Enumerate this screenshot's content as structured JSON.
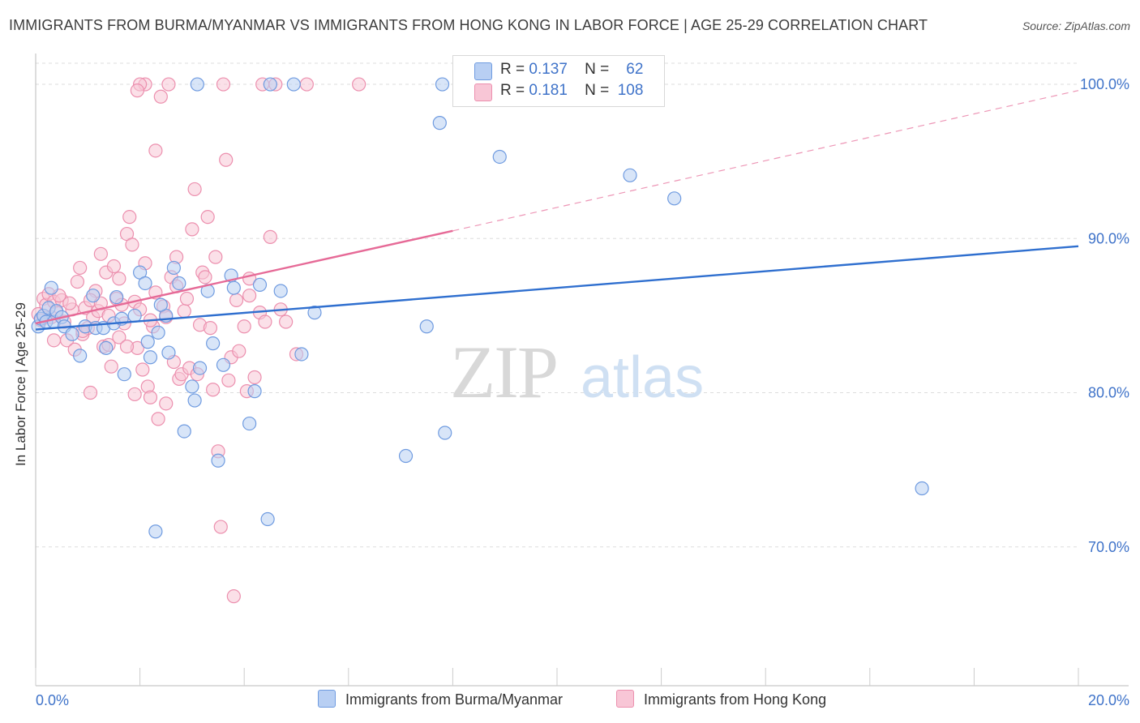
{
  "title": "IMMIGRANTS FROM BURMA/MYANMAR VS IMMIGRANTS FROM HONG KONG IN LABOR FORCE | AGE 25-29 CORRELATION CHART",
  "source": "Source: ZipAtlas.com",
  "watermark": {
    "zip": "ZIP",
    "atlas": "atlas"
  },
  "colors": {
    "blue_fill": "#b8cff3",
    "blue_stroke": "#6f9be0",
    "blue_line": "#2f6fcf",
    "pink_fill": "#f8c6d6",
    "pink_stroke": "#ec8fae",
    "pink_line": "#e66a97",
    "axis_label": "#3f73c9",
    "grid": "#dddddd"
  },
  "legend": {
    "r_label": "R =",
    "n_label": "N =",
    "burma": {
      "r": "0.137",
      "n": "62"
    },
    "hongkong": {
      "r": "0.181",
      "n": "108"
    }
  },
  "chart_data": {
    "type": "scatter",
    "xlabel": "",
    "ylabel": "In Labor Force | Age 25-29",
    "xlim": [
      0,
      20
    ],
    "ylim": [
      61,
      102
    ],
    "x_tick_labels": {
      "left": "0.0%",
      "right": "20.0%"
    },
    "y_ticks": [
      70,
      80,
      90,
      100
    ],
    "y_tick_labels": [
      "70.0%",
      "80.0%",
      "90.0%",
      "100.0%"
    ],
    "grid": "horizontal dashed",
    "series": [
      {
        "name": "Immigrants from Burma/Myanmar",
        "color": "#b8cff3",
        "trend": {
          "x": [
            0,
            20
          ],
          "y": [
            84.1,
            89.5
          ],
          "style": "solid"
        },
        "points": [
          [
            0.05,
            84.3
          ],
          [
            0.1,
            84.8
          ],
          [
            0.15,
            85.0
          ],
          [
            0.2,
            84.6
          ],
          [
            0.25,
            85.5
          ],
          [
            0.3,
            86.8
          ],
          [
            0.35,
            84.6
          ],
          [
            0.4,
            85.3
          ],
          [
            0.5,
            84.9
          ],
          [
            0.55,
            84.3
          ],
          [
            0.7,
            83.8
          ],
          [
            0.85,
            82.4
          ],
          [
            0.95,
            84.3
          ],
          [
            1.1,
            86.3
          ],
          [
            1.15,
            84.2
          ],
          [
            1.3,
            84.2
          ],
          [
            1.35,
            82.9
          ],
          [
            1.5,
            84.5
          ],
          [
            1.55,
            86.2
          ],
          [
            1.65,
            84.8
          ],
          [
            1.7,
            81.2
          ],
          [
            1.9,
            85.0
          ],
          [
            2.0,
            87.8
          ],
          [
            2.1,
            87.1
          ],
          [
            2.15,
            83.3
          ],
          [
            2.2,
            82.3
          ],
          [
            2.3,
            71.0
          ],
          [
            2.35,
            83.9
          ],
          [
            2.5,
            85.0
          ],
          [
            2.55,
            82.6
          ],
          [
            2.65,
            88.1
          ],
          [
            2.75,
            87.1
          ],
          [
            2.85,
            77.5
          ],
          [
            3.0,
            80.4
          ],
          [
            3.05,
            79.5
          ],
          [
            3.15,
            81.6
          ],
          [
            3.3,
            86.6
          ],
          [
            3.4,
            83.2
          ],
          [
            3.5,
            75.6
          ],
          [
            3.6,
            81.8
          ],
          [
            3.75,
            87.6
          ],
          [
            3.8,
            86.8
          ],
          [
            3.1,
            100.0
          ],
          [
            4.2,
            80.1
          ],
          [
            4.3,
            87.0
          ],
          [
            4.1,
            78.0
          ],
          [
            4.45,
            71.8
          ],
          [
            4.5,
            100.0
          ],
          [
            4.7,
            86.6
          ],
          [
            4.95,
            100.0
          ],
          [
            5.1,
            82.5
          ],
          [
            5.35,
            85.2
          ],
          [
            7.1,
            75.9
          ],
          [
            7.5,
            84.3
          ],
          [
            7.8,
            100.0
          ],
          [
            7.75,
            97.5
          ],
          [
            7.85,
            77.4
          ],
          [
            8.9,
            95.3
          ],
          [
            11.4,
            94.1
          ],
          [
            12.25,
            92.6
          ],
          [
            17.0,
            73.8
          ],
          [
            2.4,
            85.7
          ]
        ]
      },
      {
        "name": "Immigrants from Hong Kong",
        "color": "#f8c6d6",
        "trend": {
          "x": [
            0,
            8
          ],
          "y": [
            84.5,
            90.5
          ],
          "style": "solid",
          "extension": {
            "x": [
              8,
              20
            ],
            "y": [
              90.5,
              99.6
            ],
            "style": "dashed"
          }
        },
        "points": [
          [
            0.05,
            85.1
          ],
          [
            0.1,
            84.7
          ],
          [
            0.15,
            86.1
          ],
          [
            0.2,
            85.7
          ],
          [
            0.25,
            86.4
          ],
          [
            0.3,
            84.9
          ],
          [
            0.35,
            85.9
          ],
          [
            0.4,
            85.2
          ],
          [
            0.5,
            86.0
          ],
          [
            0.55,
            84.6
          ],
          [
            0.6,
            83.4
          ],
          [
            0.7,
            85.4
          ],
          [
            0.75,
            82.8
          ],
          [
            0.8,
            87.2
          ],
          [
            0.85,
            88.1
          ],
          [
            0.9,
            83.8
          ],
          [
            0.95,
            85.5
          ],
          [
            1.0,
            84.2
          ],
          [
            1.05,
            80.0
          ],
          [
            1.1,
            84.9
          ],
          [
            1.15,
            86.6
          ],
          [
            1.2,
            85.3
          ],
          [
            1.25,
            89.0
          ],
          [
            1.3,
            83.0
          ],
          [
            1.35,
            87.8
          ],
          [
            1.4,
            85.0
          ],
          [
            1.45,
            81.7
          ],
          [
            1.5,
            88.2
          ],
          [
            1.55,
            86.1
          ],
          [
            1.6,
            87.4
          ],
          [
            1.65,
            85.7
          ],
          [
            1.7,
            84.5
          ],
          [
            1.75,
            90.3
          ],
          [
            1.8,
            91.4
          ],
          [
            1.85,
            89.6
          ],
          [
            1.9,
            85.9
          ],
          [
            1.95,
            82.9
          ],
          [
            2.0,
            85.4
          ],
          [
            2.05,
            81.5
          ],
          [
            2.1,
            88.4
          ],
          [
            2.15,
            80.4
          ],
          [
            2.2,
            79.7
          ],
          [
            2.25,
            84.3
          ],
          [
            2.3,
            86.5
          ],
          [
            2.35,
            78.3
          ],
          [
            2.4,
            99.2
          ],
          [
            2.45,
            85.6
          ],
          [
            2.5,
            79.3
          ],
          [
            2.55,
            100.0
          ],
          [
            2.6,
            87.5
          ],
          [
            2.65,
            82.0
          ],
          [
            2.7,
            88.8
          ],
          [
            2.75,
            80.9
          ],
          [
            2.8,
            81.2
          ],
          [
            2.85,
            85.3
          ],
          [
            2.9,
            86.1
          ],
          [
            2.95,
            81.6
          ],
          [
            3.0,
            90.6
          ],
          [
            3.05,
            93.2
          ],
          [
            3.1,
            81.2
          ],
          [
            3.15,
            84.4
          ],
          [
            3.2,
            87.8
          ],
          [
            3.3,
            91.4
          ],
          [
            3.35,
            84.2
          ],
          [
            3.4,
            80.2
          ],
          [
            3.45,
            88.8
          ],
          [
            3.5,
            76.2
          ],
          [
            3.55,
            71.3
          ],
          [
            3.6,
            100.0
          ],
          [
            3.65,
            95.1
          ],
          [
            3.7,
            80.8
          ],
          [
            3.75,
            82.3
          ],
          [
            3.8,
            66.8
          ],
          [
            3.85,
            86.0
          ],
          [
            3.9,
            82.7
          ],
          [
            4.0,
            84.3
          ],
          [
            4.05,
            80.1
          ],
          [
            4.1,
            86.3
          ],
          [
            4.2,
            81.0
          ],
          [
            4.3,
            85.2
          ],
          [
            4.4,
            84.6
          ],
          [
            4.5,
            90.1
          ],
          [
            4.6,
            100.0
          ],
          [
            4.7,
            85.4
          ],
          [
            4.8,
            84.6
          ],
          [
            5.0,
            82.5
          ],
          [
            5.2,
            100.0
          ],
          [
            6.2,
            100.0
          ],
          [
            2.3,
            95.7
          ],
          [
            2.1,
            100.0
          ],
          [
            2.0,
            100.0
          ],
          [
            1.95,
            99.6
          ],
          [
            0.45,
            86.3
          ],
          [
            0.65,
            85.8
          ],
          [
            0.9,
            84.0
          ],
          [
            1.05,
            86.0
          ],
          [
            1.4,
            83.1
          ],
          [
            1.6,
            83.6
          ],
          [
            1.75,
            83.0
          ],
          [
            1.9,
            79.9
          ],
          [
            2.2,
            84.7
          ],
          [
            2.5,
            84.9
          ],
          [
            2.7,
            86.9
          ],
          [
            0.35,
            83.4
          ],
          [
            1.25,
            85.8
          ],
          [
            3.25,
            87.5
          ],
          [
            4.1,
            87.4
          ],
          [
            4.35,
            100.0
          ]
        ]
      }
    ]
  },
  "bottom_legend": {
    "burma": "Immigrants from Burma/Myanmar",
    "hongkong": "Immigrants from Hong Kong"
  }
}
